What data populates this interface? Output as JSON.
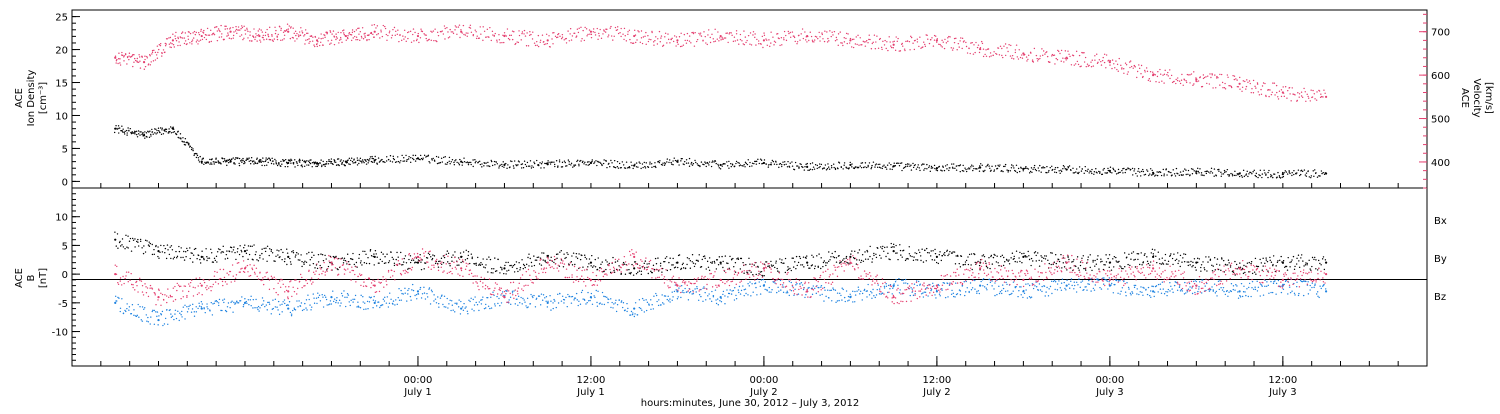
{
  "chart_data": [
    {
      "type": "scatter",
      "panel": "top",
      "ylabel_left": [
        "ACE",
        "Ion Density",
        "[cm⁻³]"
      ],
      "ylabel_right": [
        "ACE",
        "Velocity",
        "[km/s]"
      ],
      "ylim_left": [
        -1,
        26
      ],
      "ylim_right": [
        340,
        750
      ],
      "y_ticks_left": [
        0,
        5,
        10,
        15,
        20,
        25
      ],
      "y_ticks_right": [
        400,
        500,
        600,
        700
      ],
      "colors": {
        "density": "#000000",
        "velocity": "#e43f6f"
      },
      "series": [
        {
          "name_hidden": "density",
          "x": [
            "2012-06-30 03:00",
            "2012-06-30 05:00",
            "2012-06-30 07:00",
            "2012-06-30 09:00",
            "2012-06-30 11:00",
            "2012-06-30 13:00",
            "2012-06-30 15:00",
            "2012-06-30 17:00",
            "2012-06-30 19:00",
            "2012-06-30 21:00",
            "2012-07-01 00:00",
            "2012-07-01 03:00",
            "2012-07-01 06:00",
            "2012-07-01 09:00",
            "2012-07-01 12:00",
            "2012-07-01 15:00",
            "2012-07-01 18:00",
            "2012-07-01 21:00",
            "2012-07-02 00:00",
            "2012-07-02 03:00",
            "2012-07-02 06:00",
            "2012-07-02 09:00",
            "2012-07-02 12:00",
            "2012-07-02 15:00",
            "2012-07-02 18:00",
            "2012-07-02 21:00",
            "2012-07-03 00:00",
            "2012-07-03 03:00",
            "2012-07-03 06:00",
            "2012-07-03 09:00",
            "2012-07-03 12:00",
            "2012-07-03 15:00"
          ],
          "y": [
            8,
            7,
            8,
            3,
            3,
            3,
            2.8,
            2.7,
            3,
            3.2,
            3.5,
            3,
            2.5,
            2.6,
            2.8,
            2.4,
            3,
            2.5,
            2.8,
            2.2,
            2.5,
            2.3,
            2,
            2.1,
            1.9,
            1.8,
            1.6,
            1.3,
            1.5,
            1.2,
            1.1,
            1.2
          ]
        },
        {
          "name_hidden": "velocity",
          "x": [
            "2012-06-30 03:00",
            "2012-06-30 05:00",
            "2012-06-30 07:00",
            "2012-06-30 09:00",
            "2012-06-30 11:00",
            "2012-06-30 13:00",
            "2012-06-30 15:00",
            "2012-06-30 17:00",
            "2012-06-30 19:00",
            "2012-06-30 21:00",
            "2012-07-01 00:00",
            "2012-07-01 03:00",
            "2012-07-01 06:00",
            "2012-07-01 09:00",
            "2012-07-01 12:00",
            "2012-07-01 15:00",
            "2012-07-01 18:00",
            "2012-07-01 21:00",
            "2012-07-02 00:00",
            "2012-07-02 03:00",
            "2012-07-02 06:00",
            "2012-07-02 09:00",
            "2012-07-02 12:00",
            "2012-07-02 15:00",
            "2012-07-02 18:00",
            "2012-07-02 21:00",
            "2012-07-03 00:00",
            "2012-07-03 03:00",
            "2012-07-03 06:00",
            "2012-07-03 09:00",
            "2012-07-03 12:00",
            "2012-07-03 15:00"
          ],
          "y": [
            640,
            630,
            680,
            690,
            700,
            690,
            700,
            680,
            690,
            700,
            690,
            700,
            690,
            680,
            700,
            690,
            680,
            690,
            680,
            690,
            680,
            670,
            680,
            660,
            650,
            640,
            630,
            600,
            590,
            580,
            560,
            550
          ]
        }
      ]
    },
    {
      "type": "scatter",
      "panel": "bottom",
      "ylabel_left": [
        "ACE",
        "B",
        "[nT]"
      ],
      "ylim": [
        -16,
        15
      ],
      "y_ticks": [
        -10,
        -5,
        0,
        5,
        10
      ],
      "legend": [
        "Bx",
        "By",
        "Bz"
      ],
      "colors": {
        "Bx": "#000000",
        "By": "#1d82e0",
        "Bz": "#e43f6f"
      },
      "series": [
        {
          "name": "Bx",
          "x": [
            "2012-06-30 03:00",
            "2012-06-30 06:00",
            "2012-06-30 09:00",
            "2012-06-30 12:00",
            "2012-06-30 15:00",
            "2012-06-30 18:00",
            "2012-06-30 21:00",
            "2012-07-01 00:00",
            "2012-07-01 03:00",
            "2012-07-01 06:00",
            "2012-07-01 09:00",
            "2012-07-01 12:00",
            "2012-07-01 15:00",
            "2012-07-01 18:00",
            "2012-07-01 21:00",
            "2012-07-02 00:00",
            "2012-07-02 03:00",
            "2012-07-02 06:00",
            "2012-07-02 09:00",
            "2012-07-02 12:00",
            "2012-07-02 15:00",
            "2012-07-02 18:00",
            "2012-07-02 21:00",
            "2012-07-03 00:00",
            "2012-07-03 03:00",
            "2012-07-03 06:00",
            "2012-07-03 09:00",
            "2012-07-03 12:00",
            "2012-07-03 15:00"
          ],
          "y": [
            6,
            4,
            3,
            4,
            3,
            2,
            3,
            2,
            3,
            1,
            3,
            2,
            1,
            2,
            2,
            1,
            2,
            3,
            4,
            3,
            2,
            3,
            2,
            2,
            3,
            2,
            1,
            2,
            2
          ]
        },
        {
          "name": "By",
          "x": [
            "2012-06-30 03:00",
            "2012-06-30 06:00",
            "2012-06-30 09:00",
            "2012-06-30 12:00",
            "2012-06-30 15:00",
            "2012-06-30 18:00",
            "2012-06-30 21:00",
            "2012-07-01 00:00",
            "2012-07-01 03:00",
            "2012-07-01 06:00",
            "2012-07-01 09:00",
            "2012-07-01 12:00",
            "2012-07-01 15:00",
            "2012-07-01 18:00",
            "2012-07-01 21:00",
            "2012-07-02 00:00",
            "2012-07-02 03:00",
            "2012-07-02 06:00",
            "2012-07-02 09:00",
            "2012-07-02 12:00",
            "2012-07-02 15:00",
            "2012-07-02 18:00",
            "2012-07-02 21:00",
            "2012-07-03 00:00",
            "2012-07-03 03:00",
            "2012-07-03 06:00",
            "2012-07-03 09:00",
            "2012-07-03 12:00",
            "2012-07-03 15:00"
          ],
          "y": [
            -5,
            -8,
            -6,
            -5,
            -6,
            -4,
            -5,
            -3,
            -6,
            -4,
            -5,
            -4,
            -6,
            -3,
            -4,
            -2,
            -3,
            -4,
            -2,
            -3,
            -2,
            -3,
            -2,
            -2,
            -3,
            -2,
            -3,
            -2,
            -3
          ]
        },
        {
          "name": "Bz",
          "x": [
            "2012-06-30 03:00",
            "2012-06-30 06:00",
            "2012-06-30 09:00",
            "2012-06-30 12:00",
            "2012-06-30 15:00",
            "2012-06-30 18:00",
            "2012-06-30 21:00",
            "2012-07-01 00:00",
            "2012-07-01 03:00",
            "2012-07-01 06:00",
            "2012-07-01 09:00",
            "2012-07-01 12:00",
            "2012-07-01 15:00",
            "2012-07-01 18:00",
            "2012-07-01 21:00",
            "2012-07-02 00:00",
            "2012-07-02 03:00",
            "2012-07-02 06:00",
            "2012-07-02 09:00",
            "2012-07-02 12:00",
            "2012-07-02 15:00",
            "2012-07-02 18:00",
            "2012-07-02 21:00",
            "2012-07-03 00:00",
            "2012-07-03 03:00",
            "2012-07-03 06:00",
            "2012-07-03 09:00",
            "2012-07-03 12:00",
            "2012-07-03 15:00"
          ],
          "y": [
            0,
            -4,
            -2,
            1,
            -3,
            2,
            -2,
            3,
            1,
            -4,
            2,
            -1,
            3,
            -2,
            -1,
            1,
            -3,
            2,
            -4,
            -2,
            1,
            -1,
            2,
            -1,
            1,
            -2,
            1,
            -1,
            0
          ]
        }
      ]
    }
  ],
  "x_axis": {
    "ticks": [
      {
        "time": "00:00",
        "date": "July 1"
      },
      {
        "time": "12:00",
        "date": "July 1"
      },
      {
        "time": "00:00",
        "date": "July 2"
      },
      {
        "time": "12:00",
        "date": "July 2"
      },
      {
        "time": "00:00",
        "date": "July 3"
      },
      {
        "time": "12:00",
        "date": "July 3"
      }
    ],
    "label": "hours:minutes, June 30, 2012 – July  3, 2012"
  },
  "labels": {
    "top_left": [
      "ACE",
      "Ion Density",
      "[cm⁻³]"
    ],
    "top_right": [
      "ACE",
      "Velocity",
      "[km/s]"
    ],
    "bottom_left": [
      "ACE",
      "B",
      "[nT]"
    ],
    "legend": {
      "Bx": "Bx",
      "By": "By",
      "Bz": "Bz"
    }
  }
}
